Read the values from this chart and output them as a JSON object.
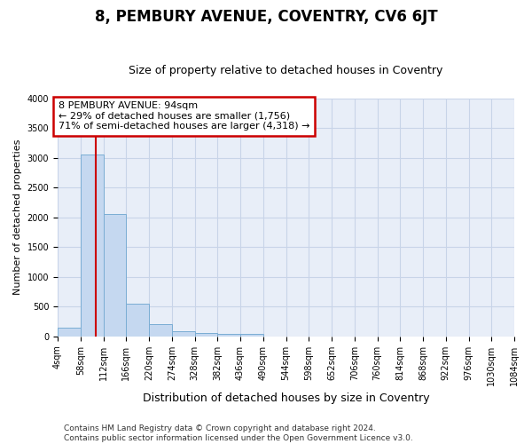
{
  "title": "8, PEMBURY AVENUE, COVENTRY, CV6 6JT",
  "subtitle": "Size of property relative to detached houses in Coventry",
  "xlabel": "Distribution of detached houses by size in Coventry",
  "ylabel": "Number of detached properties",
  "footer_line1": "Contains HM Land Registry data © Crown copyright and database right 2024.",
  "footer_line2": "Contains public sector information licensed under the Open Government Licence v3.0.",
  "annotation_line1": "8 PEMBURY AVENUE: 94sqm",
  "annotation_line2": "← 29% of detached houses are smaller (1,756)",
  "annotation_line3": "71% of semi-detached houses are larger (4,318) →",
  "property_size": 94,
  "vline_color": "#cc0000",
  "annotation_box_edgecolor": "#cc0000",
  "bar_color": "#c5d8f0",
  "bar_edge_color": "#7aadd4",
  "grid_color": "#c8d4e8",
  "bg_color": "#e8eef8",
  "bins": [
    4,
    58,
    112,
    166,
    220,
    274,
    328,
    382,
    436,
    490,
    544,
    598,
    652,
    706,
    760,
    814,
    868,
    922,
    976,
    1030,
    1084
  ],
  "counts": [
    140,
    3050,
    2060,
    550,
    200,
    80,
    55,
    40,
    40,
    0,
    0,
    0,
    0,
    0,
    0,
    0,
    0,
    0,
    0,
    0
  ],
  "ylim": [
    0,
    4000
  ],
  "yticks": [
    0,
    500,
    1000,
    1500,
    2000,
    2500,
    3000,
    3500,
    4000
  ],
  "title_fontsize": 12,
  "subtitle_fontsize": 9,
  "ylabel_fontsize": 8,
  "xlabel_fontsize": 9,
  "tick_fontsize": 7,
  "footer_fontsize": 6.5,
  "annotation_fontsize": 8
}
